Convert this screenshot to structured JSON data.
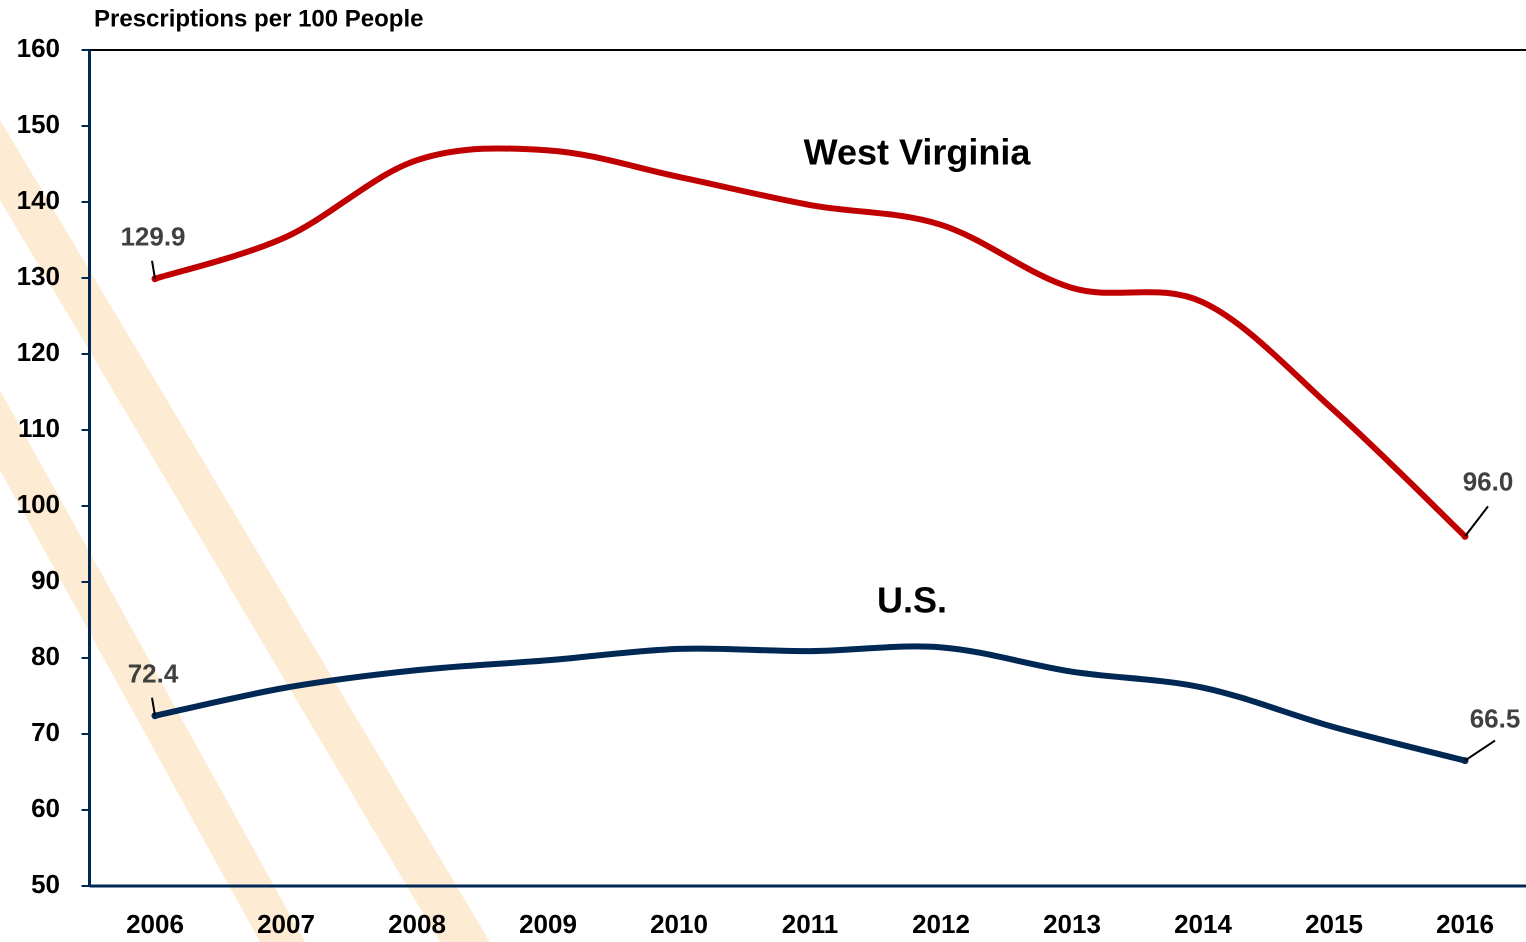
{
  "chart_data": {
    "type": "line",
    "title": "Prescriptions per 100 People",
    "categories": [
      "2006",
      "2007",
      "2008",
      "2009",
      "2010",
      "2011",
      "2012",
      "2013",
      "2014",
      "2015",
      "2016"
    ],
    "series": [
      {
        "name": "West Virginia",
        "color": "#c00000",
        "values": [
          129.9,
          135.4,
          145.5,
          146.8,
          143.3,
          139.6,
          137.0,
          128.7,
          126.8,
          112.6,
          96.0
        ],
        "value_labels": [
          "129.9",
          null,
          null,
          null,
          null,
          null,
          null,
          null,
          null,
          null,
          "96.0"
        ]
      },
      {
        "name": "U.S.",
        "color": "#002855",
        "values": [
          72.4,
          76.1,
          78.4,
          79.7,
          81.2,
          80.9,
          81.4,
          78.2,
          76.1,
          70.9,
          66.5
        ],
        "value_labels": [
          "72.4",
          null,
          null,
          null,
          null,
          null,
          null,
          null,
          null,
          null,
          "66.5"
        ]
      }
    ],
    "ylim": [
      50,
      160
    ],
    "yticks": [
      50,
      60,
      70,
      80,
      90,
      100,
      110,
      120,
      130,
      140,
      150,
      160
    ],
    "grid": false
  }
}
